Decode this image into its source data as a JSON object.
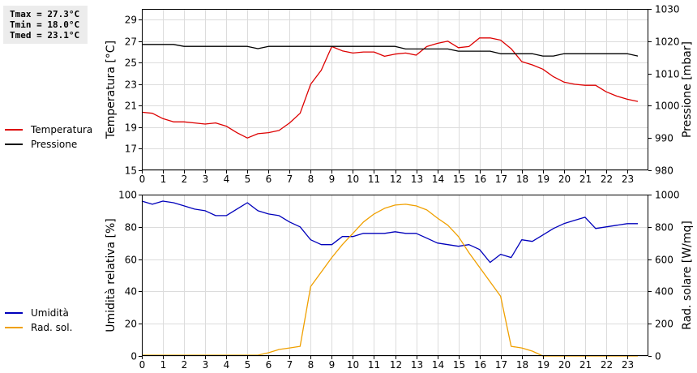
{
  "stats": {
    "tmax": "Tmax = 27.3°C",
    "tmin": "Tmin = 18.0°C",
    "tmed": "Tmed = 23.1°C"
  },
  "chart_data": [
    {
      "type": "line",
      "title": "",
      "xlabel": "",
      "ylabel": "Temperatura [°C]",
      "y2label": "Pressione [mbar]",
      "xlim": [
        0,
        24
      ],
      "ylim": [
        15,
        30
      ],
      "y2lim": [
        980,
        1030
      ],
      "xticks": [
        0,
        1,
        2,
        3,
        4,
        5,
        6,
        7,
        8,
        9,
        10,
        11,
        12,
        13,
        14,
        15,
        16,
        17,
        18,
        19,
        20,
        21,
        22,
        23
      ],
      "yticks": [
        15,
        17,
        19,
        21,
        23,
        25,
        27,
        29
      ],
      "y2ticks": [
        980,
        990,
        1000,
        1010,
        1020,
        1030
      ],
      "grid": true,
      "legend_placement": "left",
      "series": [
        {
          "name": "Temperatura",
          "color": "#dd0000",
          "axis": "left",
          "x": [
            0,
            0.5,
            1,
            1.5,
            2,
            2.5,
            3,
            3.5,
            4,
            4.5,
            5,
            5.5,
            6,
            6.5,
            7,
            7.5,
            8,
            8.5,
            9,
            9.5,
            10,
            10.5,
            11,
            11.5,
            12,
            12.5,
            13,
            13.5,
            14,
            14.5,
            15,
            15.5,
            16,
            16.5,
            17,
            17.5,
            18,
            18.5,
            19,
            19.5,
            20,
            20.5,
            21,
            21.5,
            22,
            22.5,
            23,
            23.5
          ],
          "values": [
            20.4,
            20.3,
            19.8,
            19.5,
            19.5,
            19.4,
            19.3,
            19.4,
            19.1,
            18.5,
            18.0,
            18.4,
            18.5,
            18.7,
            19.4,
            20.3,
            23.0,
            24.3,
            26.5,
            26.1,
            25.9,
            26.0,
            26.0,
            25.6,
            25.8,
            25.9,
            25.7,
            26.5,
            26.8,
            27.0,
            26.4,
            26.5,
            27.3,
            27.3,
            27.1,
            26.3,
            25.1,
            24.8,
            24.4,
            23.7,
            23.2,
            23.0,
            22.9,
            22.9,
            22.3,
            21.9,
            21.6,
            21.4
          ]
        },
        {
          "name": "Pressione",
          "color": "#000000",
          "axis": "right",
          "x": [
            0,
            0.5,
            1,
            1.5,
            2,
            2.5,
            3,
            3.5,
            4,
            4.5,
            5,
            5.5,
            6,
            6.5,
            7,
            7.5,
            8,
            8.5,
            9,
            9.5,
            10,
            10.5,
            11,
            11.5,
            12,
            12.5,
            13,
            13.5,
            14,
            14.5,
            15,
            15.5,
            16,
            16.5,
            17,
            17.5,
            18,
            18.5,
            19,
            19.5,
            20,
            20.5,
            21,
            21.5,
            22,
            22.5,
            23,
            23.5
          ],
          "values": [
            1019,
            1019,
            1019,
            1019,
            1018.4,
            1018.4,
            1018.4,
            1018.4,
            1018.4,
            1018.4,
            1018.4,
            1017.7,
            1018.4,
            1018.4,
            1018.4,
            1018.4,
            1018.4,
            1018.4,
            1018.4,
            1018.4,
            1018.4,
            1018.4,
            1018.4,
            1018.4,
            1018.4,
            1017.6,
            1017.6,
            1017.6,
            1017.6,
            1017.6,
            1016.9,
            1016.9,
            1016.9,
            1016.9,
            1016.1,
            1016.1,
            1016.1,
            1016.1,
            1015.4,
            1015.4,
            1016.1,
            1016.1,
            1016.1,
            1016.1,
            1016.1,
            1016.1,
            1016.1,
            1015.4
          ]
        }
      ]
    },
    {
      "type": "line",
      "title": "",
      "xlabel": "",
      "ylabel": "Umidità relativa [%]",
      "y2label": "Rad. solare [W/mq]",
      "xlim": [
        0,
        24
      ],
      "ylim": [
        0,
        100
      ],
      "y2lim": [
        0,
        1000
      ],
      "xticks": [
        0,
        1,
        2,
        3,
        4,
        5,
        6,
        7,
        8,
        9,
        10,
        11,
        12,
        13,
        14,
        15,
        16,
        17,
        18,
        19,
        20,
        21,
        22,
        23
      ],
      "yticks": [
        0,
        20,
        40,
        60,
        80,
        100
      ],
      "y2ticks": [
        0,
        200,
        400,
        600,
        800,
        1000
      ],
      "grid": true,
      "legend_placement": "left",
      "series": [
        {
          "name": "Umidità",
          "color": "#0000bb",
          "axis": "left",
          "x": [
            0,
            0.5,
            1,
            1.5,
            2,
            2.5,
            3,
            3.5,
            4,
            4.5,
            5,
            5.5,
            6,
            6.5,
            7,
            7.5,
            8,
            8.5,
            9,
            9.5,
            10,
            10.5,
            11,
            11.5,
            12,
            12.5,
            13,
            13.5,
            14,
            14.5,
            15,
            15.5,
            16,
            16.5,
            17,
            17.5,
            18,
            18.5,
            19,
            19.5,
            20,
            20.5,
            21,
            21.5,
            22,
            22.5,
            23,
            23.5
          ],
          "values": [
            96,
            94,
            96,
            95,
            93,
            91,
            90,
            87,
            87,
            91,
            95,
            90,
            88,
            87,
            83,
            80,
            72,
            69,
            69,
            74,
            74,
            76,
            76,
            76,
            77,
            76,
            76,
            73,
            70,
            69,
            68,
            69,
            66,
            58,
            63,
            61,
            72,
            71,
            75,
            79,
            82,
            84,
            86,
            79,
            80,
            81,
            82,
            82
          ]
        },
        {
          "name": "Rad. sol.",
          "color": "#f0a000",
          "axis": "right",
          "x": [
            0,
            0.5,
            1,
            1.5,
            2,
            2.5,
            3,
            3.5,
            4,
            4.5,
            5,
            5.5,
            6,
            6.5,
            7,
            7.5,
            8,
            8.5,
            9,
            9.5,
            10,
            10.5,
            11,
            11.5,
            12,
            12.5,
            13,
            13.5,
            14,
            14.5,
            15,
            15.5,
            16,
            16.5,
            17,
            17.5,
            18,
            18.5,
            19,
            19.5,
            20,
            20.5,
            21,
            21.5,
            22,
            22.5,
            23,
            23.5
          ],
          "values": [
            5,
            5,
            5,
            5,
            5,
            5,
            5,
            5,
            5,
            5,
            5,
            5,
            20,
            40,
            50,
            60,
            430,
            520,
            610,
            690,
            760,
            830,
            880,
            915,
            935,
            940,
            930,
            905,
            855,
            810,
            740,
            640,
            550,
            460,
            370,
            60,
            50,
            30,
            0,
            0,
            0,
            0,
            0,
            0,
            0,
            0,
            0,
            0
          ]
        }
      ]
    }
  ]
}
